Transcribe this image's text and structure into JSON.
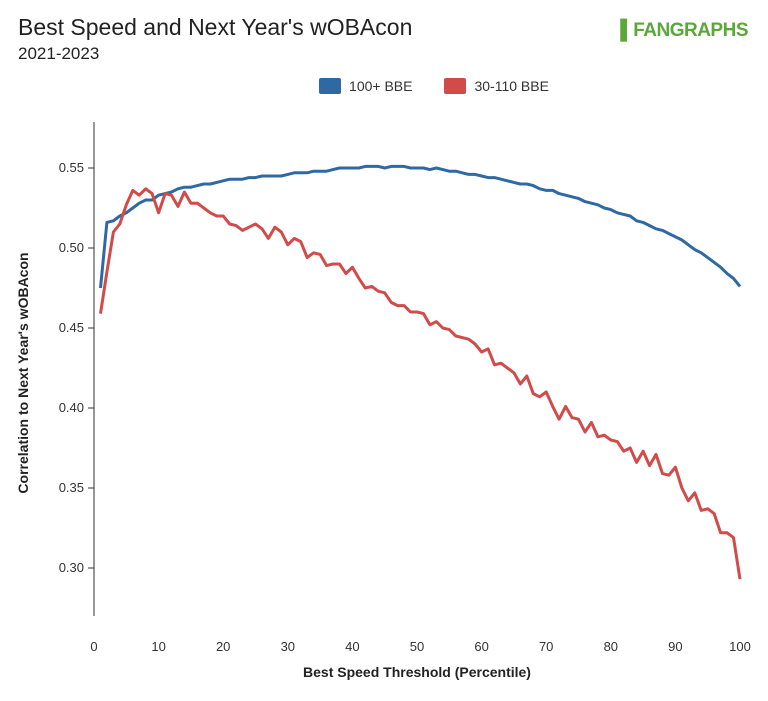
{
  "chart_data": {
    "type": "line",
    "title": "Best Speed and Next Year's wOBAcon",
    "subtitle": "2021-2023",
    "logo": "FANGRAPHS",
    "xlabel": "Best Speed Threshold (Percentile)",
    "ylabel": "Correlation to Next Year's wOBAcon",
    "xlim": [
      0,
      100
    ],
    "ylim": [
      0.275,
      0.575
    ],
    "xticks": [
      "0",
      "10",
      "20",
      "30",
      "40",
      "50",
      "60",
      "70",
      "80",
      "90",
      "100"
    ],
    "yticks": [
      "0.30",
      "0.35",
      "0.40",
      "0.45",
      "0.50",
      "0.55"
    ],
    "grid": false,
    "legend_position": "top-center",
    "x": [
      1,
      2,
      3,
      4,
      5,
      6,
      7,
      8,
      9,
      10,
      11,
      12,
      13,
      14,
      15,
      16,
      17,
      18,
      19,
      20,
      21,
      22,
      23,
      24,
      25,
      26,
      27,
      28,
      29,
      30,
      31,
      32,
      33,
      34,
      35,
      36,
      37,
      38,
      39,
      40,
      41,
      42,
      43,
      44,
      45,
      46,
      47,
      48,
      49,
      50,
      51,
      52,
      53,
      54,
      55,
      56,
      57,
      58,
      59,
      60,
      61,
      62,
      63,
      64,
      65,
      66,
      67,
      68,
      69,
      70,
      71,
      72,
      73,
      74,
      75,
      76,
      77,
      78,
      79,
      80,
      81,
      82,
      83,
      84,
      85,
      86,
      87,
      88,
      89,
      90,
      91,
      92,
      93,
      94,
      95,
      96,
      97,
      98,
      99,
      100
    ],
    "series": [
      {
        "name": "100+ BBE",
        "color": "#2f69a3",
        "values": [
          0.475,
          0.516,
          0.517,
          0.52,
          0.522,
          0.525,
          0.528,
          0.53,
          0.53,
          0.533,
          0.534,
          0.535,
          0.537,
          0.538,
          0.538,
          0.539,
          0.54,
          0.54,
          0.541,
          0.542,
          0.543,
          0.543,
          0.543,
          0.544,
          0.544,
          0.545,
          0.545,
          0.545,
          0.545,
          0.546,
          0.547,
          0.547,
          0.547,
          0.548,
          0.548,
          0.548,
          0.549,
          0.55,
          0.55,
          0.55,
          0.55,
          0.551,
          0.551,
          0.551,
          0.55,
          0.551,
          0.551,
          0.551,
          0.55,
          0.55,
          0.55,
          0.549,
          0.55,
          0.549,
          0.548,
          0.548,
          0.547,
          0.546,
          0.546,
          0.545,
          0.544,
          0.544,
          0.543,
          0.542,
          0.541,
          0.54,
          0.54,
          0.539,
          0.537,
          0.536,
          0.536,
          0.534,
          0.533,
          0.532,
          0.531,
          0.529,
          0.528,
          0.527,
          0.525,
          0.524,
          0.522,
          0.521,
          0.52,
          0.517,
          0.516,
          0.514,
          0.512,
          0.511,
          0.509,
          0.507,
          0.505,
          0.502,
          0.499,
          0.497,
          0.494,
          0.491,
          0.488,
          0.484,
          0.481,
          0.476
        ]
      },
      {
        "name": "30-110 BBE",
        "color": "#d14b4b",
        "values": [
          0.459,
          0.485,
          0.51,
          0.515,
          0.527,
          0.536,
          0.533,
          0.537,
          0.534,
          0.522,
          0.534,
          0.533,
          0.526,
          0.535,
          0.528,
          0.528,
          0.525,
          0.522,
          0.52,
          0.52,
          0.515,
          0.514,
          0.511,
          0.513,
          0.515,
          0.512,
          0.506,
          0.513,
          0.51,
          0.502,
          0.506,
          0.504,
          0.494,
          0.497,
          0.496,
          0.489,
          0.49,
          0.49,
          0.484,
          0.488,
          0.481,
          0.475,
          0.476,
          0.473,
          0.472,
          0.466,
          0.464,
          0.464,
          0.46,
          0.46,
          0.459,
          0.452,
          0.454,
          0.45,
          0.449,
          0.445,
          0.444,
          0.443,
          0.44,
          0.435,
          0.437,
          0.427,
          0.428,
          0.425,
          0.422,
          0.415,
          0.42,
          0.409,
          0.407,
          0.41,
          0.401,
          0.393,
          0.401,
          0.394,
          0.393,
          0.385,
          0.391,
          0.382,
          0.383,
          0.38,
          0.379,
          0.373,
          0.375,
          0.366,
          0.373,
          0.364,
          0.371,
          0.359,
          0.358,
          0.363,
          0.35,
          0.342,
          0.347,
          0.336,
          0.337,
          0.334,
          0.322,
          0.322,
          0.319,
          0.293
        ]
      }
    ]
  }
}
